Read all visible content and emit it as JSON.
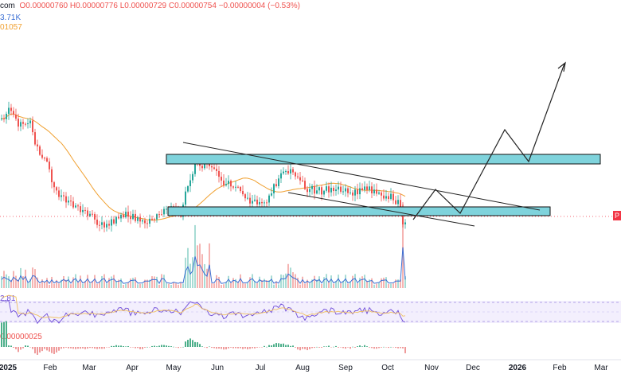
{
  "header": {
    "ticker_suffix": "com",
    "ohlc": "O0.00000760 H0.00000776 L0.00000729 C0.00000754 −0.00000004 (−0.53%)",
    "volume_label": "3.71K",
    "ma_label": "01057"
  },
  "rsi": {
    "level_label": "2.81"
  },
  "macd": {
    "label": "0.00000025"
  },
  "price_tag": {
    "text": "P"
  },
  "colors": {
    "up": "#26a69a",
    "down": "#ef5350",
    "zone_fill": "#7fd3dc",
    "ma": "#f0a030",
    "vol_ma": "#3b6fd4",
    "rsi": "#6e4bd8",
    "last_price": "#f23645"
  },
  "chart_data": {
    "type": "candlestick",
    "x_labels": [
      "2025",
      "Feb",
      "Mar",
      "Apr",
      "May",
      "Jun",
      "Jul",
      "Aug",
      "Sep",
      "Oct",
      "Nov",
      "Dec",
      "2026",
      "Feb",
      "Mar"
    ],
    "ohlc_label": "O0.00000760 H0.00000776 L0.00000729 C0.00000754 −0.00000004 (−0.53%)",
    "annotations": [
      "descending channel",
      "support zone",
      "resistance zone",
      "projected breakout path"
    ],
    "grid": false,
    "panes": [
      "price",
      "volume",
      "RSI",
      "MACD"
    ]
  }
}
